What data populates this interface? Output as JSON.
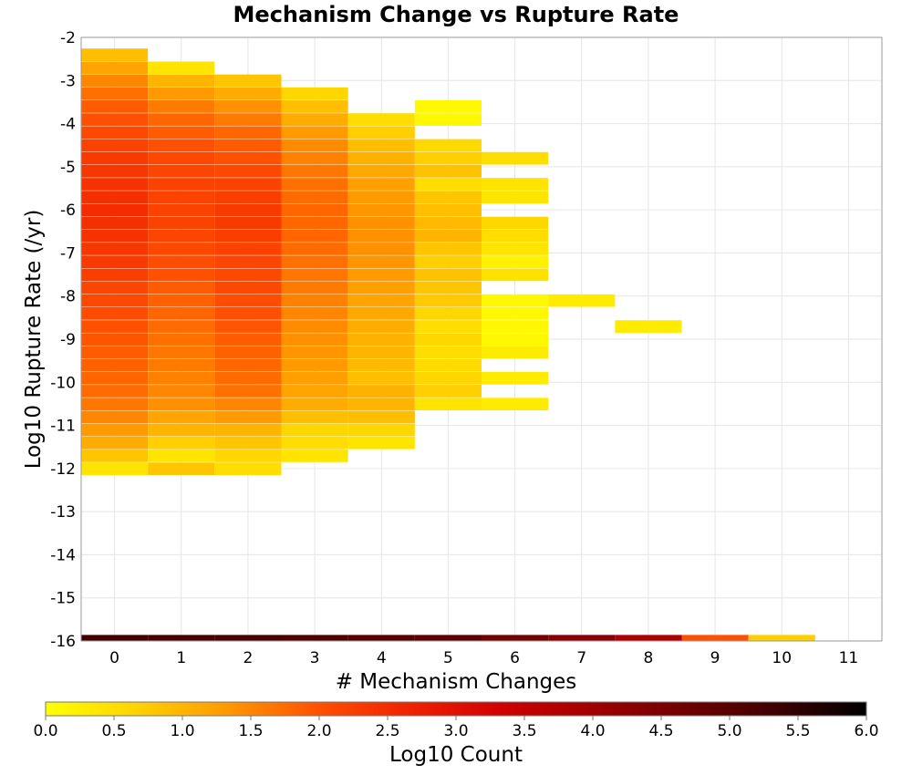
{
  "chart_data": {
    "type": "heatmap",
    "title": "Mechanism Change vs Rupture Rate",
    "xlabel": "# Mechanism Changes",
    "ylabel": "Log10 Rupture Rate (/yr)",
    "xlim": [
      -0.5,
      11.5
    ],
    "ylim": [
      -16,
      -2
    ],
    "x_ticks": [
      "0",
      "1",
      "2",
      "3",
      "4",
      "5",
      "6",
      "7",
      "8",
      "9",
      "10",
      "11"
    ],
    "y_ticks": [
      "-2",
      "-3",
      "-4",
      "-5",
      "-6",
      "-7",
      "-8",
      "-9",
      "-10",
      "-11",
      "-12",
      "-13",
      "-14",
      "-15",
      "-16"
    ],
    "grid": true,
    "y_bin_size": 0.28,
    "colorbar": {
      "label": "Log10 Count",
      "range": [
        0,
        6
      ],
      "ticks": [
        "0.0",
        "0.5",
        "1.0",
        "1.5",
        "2.0",
        "2.5",
        "3.0",
        "3.5",
        "4.0",
        "4.5",
        "5.0",
        "5.5",
        "6.0"
      ],
      "stops": [
        "#ffff00",
        "#ffd200",
        "#ff9800",
        "#ff5000",
        "#f02000",
        "#d10000",
        "#a00000",
        "#700000",
        "#400000",
        "#000000"
      ]
    },
    "columns": [
      {
        "x": 0,
        "cells": [
          [
            -2.4,
            0.9
          ],
          [
            -2.7,
            1.2
          ],
          [
            -3.0,
            1.5
          ],
          [
            -3.3,
            1.7
          ],
          [
            -3.6,
            1.9
          ],
          [
            -3.9,
            2.0
          ],
          [
            -4.2,
            2.1
          ],
          [
            -4.5,
            2.2
          ],
          [
            -4.8,
            2.3
          ],
          [
            -5.1,
            2.35
          ],
          [
            -5.4,
            2.4
          ],
          [
            -5.7,
            2.45
          ],
          [
            -6.0,
            2.5
          ],
          [
            -6.3,
            2.45
          ],
          [
            -6.6,
            2.4
          ],
          [
            -6.9,
            2.35
          ],
          [
            -7.2,
            2.3
          ],
          [
            -7.5,
            2.25
          ],
          [
            -7.8,
            2.15
          ],
          [
            -8.1,
            2.1
          ],
          [
            -8.4,
            2.05
          ],
          [
            -8.7,
            2.0
          ],
          [
            -9.0,
            1.95
          ],
          [
            -9.3,
            1.9
          ],
          [
            -9.6,
            1.85
          ],
          [
            -9.9,
            1.8
          ],
          [
            -10.2,
            1.75
          ],
          [
            -10.5,
            1.65
          ],
          [
            -10.8,
            1.5
          ],
          [
            -11.1,
            1.3
          ],
          [
            -11.4,
            1.1
          ],
          [
            -11.7,
            0.8
          ],
          [
            -12.0,
            0.4
          ]
        ]
      },
      {
        "x": 1,
        "cells": [
          [
            -2.7,
            0.4
          ],
          [
            -3.0,
            1.0
          ],
          [
            -3.3,
            1.3
          ],
          [
            -3.6,
            1.6
          ],
          [
            -3.9,
            1.8
          ],
          [
            -4.2,
            1.9
          ],
          [
            -4.5,
            2.0
          ],
          [
            -4.8,
            2.1
          ],
          [
            -5.1,
            2.15
          ],
          [
            -5.4,
            2.2
          ],
          [
            -5.7,
            2.2
          ],
          [
            -6.0,
            2.2
          ],
          [
            -6.3,
            2.2
          ],
          [
            -6.6,
            2.15
          ],
          [
            -6.9,
            2.1
          ],
          [
            -7.2,
            2.05
          ],
          [
            -7.5,
            2.0
          ],
          [
            -7.8,
            1.9
          ],
          [
            -8.1,
            1.85
          ],
          [
            -8.4,
            1.8
          ],
          [
            -8.7,
            1.75
          ],
          [
            -9.0,
            1.7
          ],
          [
            -9.3,
            1.65
          ],
          [
            -9.6,
            1.6
          ],
          [
            -9.9,
            1.55
          ],
          [
            -10.2,
            1.5
          ],
          [
            -10.5,
            1.4
          ],
          [
            -10.8,
            1.2
          ],
          [
            -11.1,
            1.0
          ],
          [
            -11.4,
            0.7
          ],
          [
            -11.7,
            0.4
          ],
          [
            -12.0,
            0.8
          ]
        ]
      },
      {
        "x": 2,
        "cells": [
          [
            -3.0,
            0.8
          ],
          [
            -3.3,
            1.1
          ],
          [
            -3.6,
            1.4
          ],
          [
            -3.9,
            1.6
          ],
          [
            -4.2,
            1.8
          ],
          [
            -4.5,
            1.9
          ],
          [
            -4.8,
            2.0
          ],
          [
            -5.1,
            2.1
          ],
          [
            -5.4,
            2.2
          ],
          [
            -5.7,
            2.25
          ],
          [
            -6.0,
            2.3
          ],
          [
            -6.3,
            2.3
          ],
          [
            -6.6,
            2.25
          ],
          [
            -6.9,
            2.2
          ],
          [
            -7.2,
            2.15
          ],
          [
            -7.5,
            2.1
          ],
          [
            -7.8,
            2.1
          ],
          [
            -8.1,
            2.05
          ],
          [
            -8.4,
            2.0
          ],
          [
            -8.7,
            1.95
          ],
          [
            -9.0,
            1.9
          ],
          [
            -9.3,
            1.85
          ],
          [
            -9.6,
            1.8
          ],
          [
            -9.9,
            1.75
          ],
          [
            -10.2,
            1.7
          ],
          [
            -10.5,
            1.5
          ],
          [
            -10.8,
            1.3
          ],
          [
            -11.1,
            1.0
          ],
          [
            -11.4,
            0.8
          ],
          [
            -11.7,
            0.6
          ],
          [
            -12.0,
            0.5
          ]
        ]
      },
      {
        "x": 3,
        "cells": [
          [
            -3.3,
            0.6
          ],
          [
            -3.6,
            0.9
          ],
          [
            -3.9,
            1.1
          ],
          [
            -4.2,
            1.3
          ],
          [
            -4.5,
            1.45
          ],
          [
            -4.8,
            1.55
          ],
          [
            -5.1,
            1.65
          ],
          [
            -5.4,
            1.7
          ],
          [
            -5.7,
            1.75
          ],
          [
            -6.0,
            1.8
          ],
          [
            -6.3,
            1.8
          ],
          [
            -6.6,
            1.8
          ],
          [
            -6.9,
            1.75
          ],
          [
            -7.2,
            1.7
          ],
          [
            -7.5,
            1.65
          ],
          [
            -7.8,
            1.6
          ],
          [
            -8.1,
            1.55
          ],
          [
            -8.4,
            1.5
          ],
          [
            -8.7,
            1.45
          ],
          [
            -9.0,
            1.4
          ],
          [
            -9.3,
            1.35
          ],
          [
            -9.6,
            1.3
          ],
          [
            -9.9,
            1.25
          ],
          [
            -10.2,
            1.2
          ],
          [
            -10.5,
            1.1
          ],
          [
            -10.8,
            0.9
          ],
          [
            -11.1,
            0.6
          ],
          [
            -11.4,
            0.5
          ],
          [
            -11.7,
            0.4
          ]
        ]
      },
      {
        "x": 4,
        "cells": [
          [
            -3.9,
            0.5
          ],
          [
            -4.2,
            0.7
          ],
          [
            -4.5,
            0.9
          ],
          [
            -4.8,
            1.05
          ],
          [
            -5.1,
            1.15
          ],
          [
            -5.4,
            1.25
          ],
          [
            -5.7,
            1.3
          ],
          [
            -6.0,
            1.35
          ],
          [
            -6.3,
            1.4
          ],
          [
            -6.6,
            1.4
          ],
          [
            -6.9,
            1.4
          ],
          [
            -7.2,
            1.35
          ],
          [
            -7.5,
            1.3
          ],
          [
            -7.8,
            1.25
          ],
          [
            -8.1,
            1.2
          ],
          [
            -8.4,
            1.15
          ],
          [
            -8.7,
            1.1
          ],
          [
            -9.0,
            1.05
          ],
          [
            -9.3,
            1.0
          ],
          [
            -9.6,
            0.95
          ],
          [
            -9.9,
            0.9
          ],
          [
            -10.2,
            1.05
          ],
          [
            -10.5,
            1.0
          ],
          [
            -10.8,
            0.9
          ],
          [
            -11.1,
            0.6
          ],
          [
            -11.4,
            0.4
          ]
        ]
      },
      {
        "x": 5,
        "cells": [
          [
            -3.6,
            0.1
          ],
          [
            -3.9,
            0.1
          ],
          [
            -4.5,
            0.55
          ],
          [
            -4.8,
            0.7
          ],
          [
            -5.1,
            0.85
          ],
          [
            -5.4,
            0.5
          ],
          [
            -5.7,
            0.8
          ],
          [
            -6.0,
            0.9
          ],
          [
            -6.3,
            0.95
          ],
          [
            -6.6,
            1.0
          ],
          [
            -6.9,
            0.8
          ],
          [
            -7.2,
            0.7
          ],
          [
            -7.5,
            0.85
          ],
          [
            -7.8,
            0.8
          ],
          [
            -8.1,
            0.75
          ],
          [
            -8.4,
            0.6
          ],
          [
            -8.7,
            0.5
          ],
          [
            -9.0,
            0.6
          ],
          [
            -9.3,
            0.5
          ],
          [
            -9.6,
            0.55
          ],
          [
            -9.9,
            0.6
          ],
          [
            -10.2,
            0.7
          ],
          [
            -10.5,
            0.4
          ]
        ]
      },
      {
        "x": 6,
        "cells": [
          [
            -4.8,
            0.5
          ],
          [
            -5.4,
            0.4
          ],
          [
            -5.7,
            0.4
          ],
          [
            -6.3,
            0.6
          ],
          [
            -6.6,
            0.5
          ],
          [
            -6.9,
            0.4
          ],
          [
            -7.2,
            0.2
          ],
          [
            -7.5,
            0.45
          ],
          [
            -8.1,
            0.1
          ],
          [
            -8.4,
            0.1
          ],
          [
            -8.7,
            0.1
          ],
          [
            -9.0,
            0.1
          ],
          [
            -9.3,
            0.3
          ],
          [
            -9.9,
            0.3
          ],
          [
            -10.5,
            0.3
          ]
        ]
      },
      {
        "x": 7,
        "cells": [
          [
            -8.1,
            0.3
          ]
        ]
      },
      {
        "x": 8,
        "cells": [
          [
            -8.7,
            0.3
          ]
        ]
      }
    ],
    "bottom_row": {
      "y": -16,
      "values": [
        5.3,
        5.25,
        5.2,
        5.1,
        5.0,
        4.9,
        4.6,
        4.3,
        3.8,
        2.0,
        0.7
      ]
    }
  }
}
